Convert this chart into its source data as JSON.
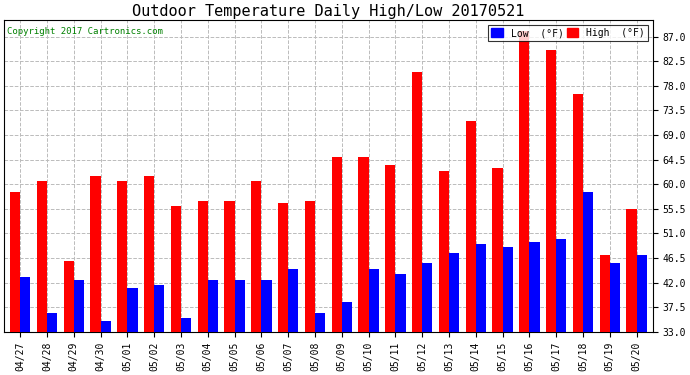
{
  "title": "Outdoor Temperature Daily High/Low 20170521",
  "copyright": "Copyright 2017 Cartronics.com",
  "dates": [
    "04/27",
    "04/28",
    "04/29",
    "04/30",
    "05/01",
    "05/02",
    "05/03",
    "05/04",
    "05/05",
    "05/06",
    "05/07",
    "05/08",
    "05/09",
    "05/10",
    "05/11",
    "05/12",
    "05/13",
    "05/14",
    "05/15",
    "05/16",
    "05/17",
    "05/18",
    "05/19",
    "05/20"
  ],
  "high": [
    58.5,
    60.5,
    46.0,
    61.5,
    60.5,
    61.5,
    56.0,
    57.0,
    57.0,
    60.5,
    56.5,
    57.0,
    65.0,
    65.0,
    63.5,
    80.5,
    62.5,
    71.5,
    63.0,
    88.0,
    84.5,
    76.5,
    47.0,
    55.5
  ],
  "low": [
    43.0,
    36.5,
    42.5,
    35.0,
    41.0,
    41.5,
    35.5,
    42.5,
    42.5,
    42.5,
    44.5,
    36.5,
    38.5,
    44.5,
    43.5,
    45.5,
    47.5,
    49.0,
    48.5,
    49.5,
    50.0,
    58.5,
    45.5,
    47.0
  ],
  "high_color": "#ff0000",
  "low_color": "#0000ff",
  "bg_color": "#ffffff",
  "grid_color": "#bbbbbb",
  "bar_bottom": 33.0,
  "ylim_min": 33.0,
  "ylim_max": 90.0,
  "yticks": [
    33.0,
    37.5,
    42.0,
    46.5,
    51.0,
    55.5,
    60.0,
    64.5,
    69.0,
    73.5,
    78.0,
    82.5,
    87.0
  ],
  "legend_low_label": "Low  (°F)",
  "legend_high_label": "High  (°F)",
  "title_fontsize": 11,
  "tick_fontsize": 7,
  "bar_width": 0.38
}
